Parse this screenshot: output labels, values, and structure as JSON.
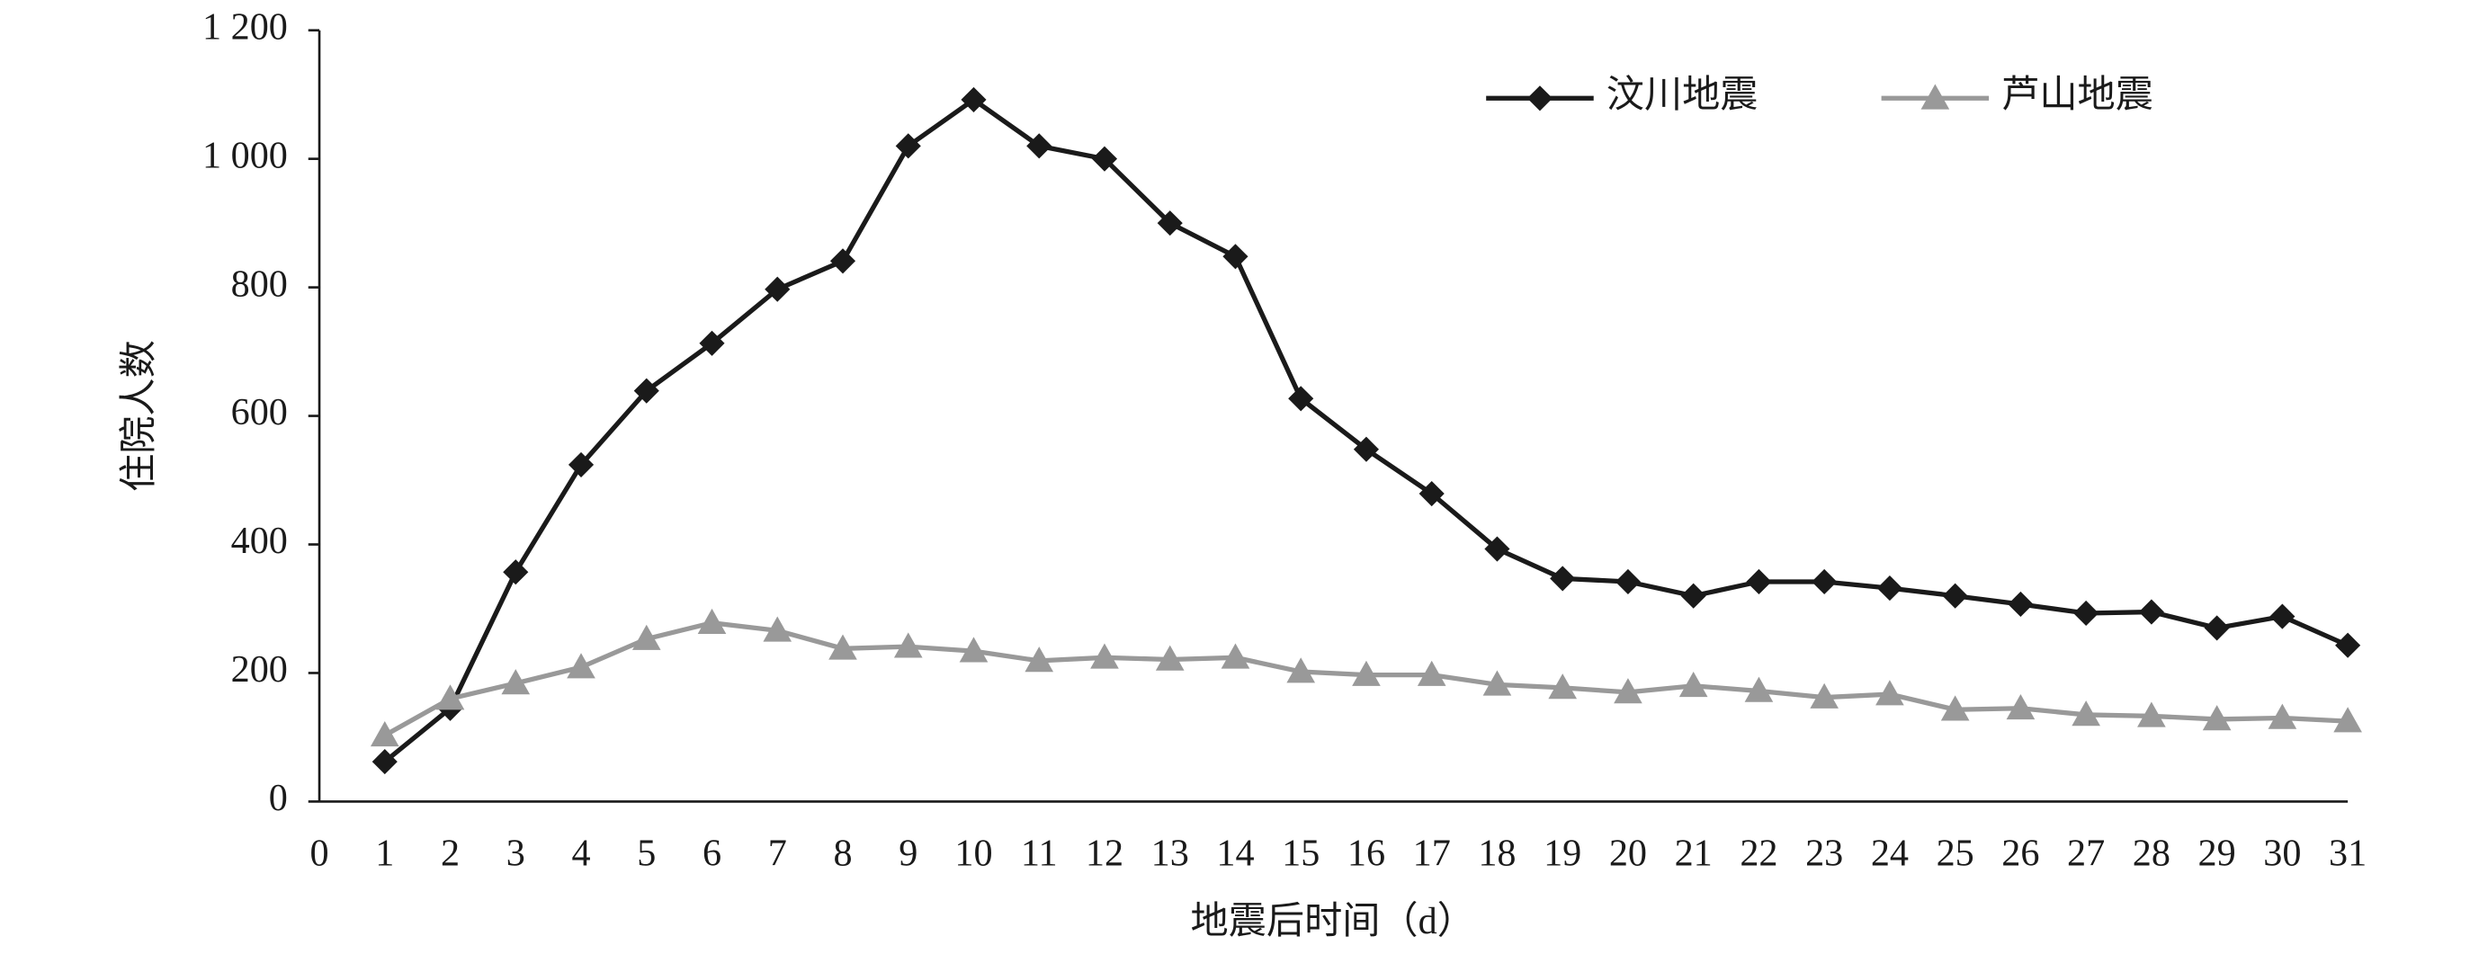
{
  "chart_data": {
    "type": "line",
    "x_label": "地震后时间（d）",
    "y_label": "住院人数",
    "x": [
      1,
      2,
      3,
      4,
      5,
      6,
      7,
      8,
      9,
      10,
      11,
      12,
      13,
      14,
      15,
      16,
      17,
      18,
      19,
      20,
      21,
      22,
      23,
      24,
      25,
      26,
      27,
      28,
      29,
      30,
      31
    ],
    "series": [
      {
        "name": "汶川地震",
        "color": "#1a1a1a",
        "marker": "diamond",
        "values": [
          62,
          145,
          357,
          524,
          639,
          713,
          797,
          841,
          1020,
          1092,
          1020,
          1000,
          900,
          848,
          627,
          548,
          479,
          393,
          347,
          342,
          320,
          342,
          342,
          332,
          320,
          307,
          293,
          295,
          270,
          288,
          243
        ]
      },
      {
        "name": "芦山地震",
        "color": "#999999",
        "marker": "triangle",
        "values": [
          103,
          160,
          184,
          209,
          253,
          278,
          266,
          238,
          241,
          234,
          219,
          224,
          221,
          224,
          202,
          197,
          197,
          182,
          177,
          170,
          180,
          172,
          162,
          167,
          143,
          145,
          135,
          133,
          128,
          130,
          125
        ]
      }
    ],
    "xlim": [
      0,
      31
    ],
    "xticks": [
      0,
      1,
      2,
      3,
      4,
      5,
      6,
      7,
      8,
      9,
      10,
      11,
      12,
      13,
      14,
      15,
      16,
      17,
      18,
      19,
      20,
      21,
      22,
      23,
      24,
      25,
      26,
      27,
      28,
      29,
      30,
      31
    ],
    "ylim": [
      0,
      1200
    ],
    "yticks": [
      0,
      200,
      400,
      600,
      800,
      {
        "value": 1000,
        "label": "1 000"
      },
      {
        "value": 1200,
        "label": "1 200"
      }
    ],
    "legend_position": "top-right",
    "grid": false
  }
}
